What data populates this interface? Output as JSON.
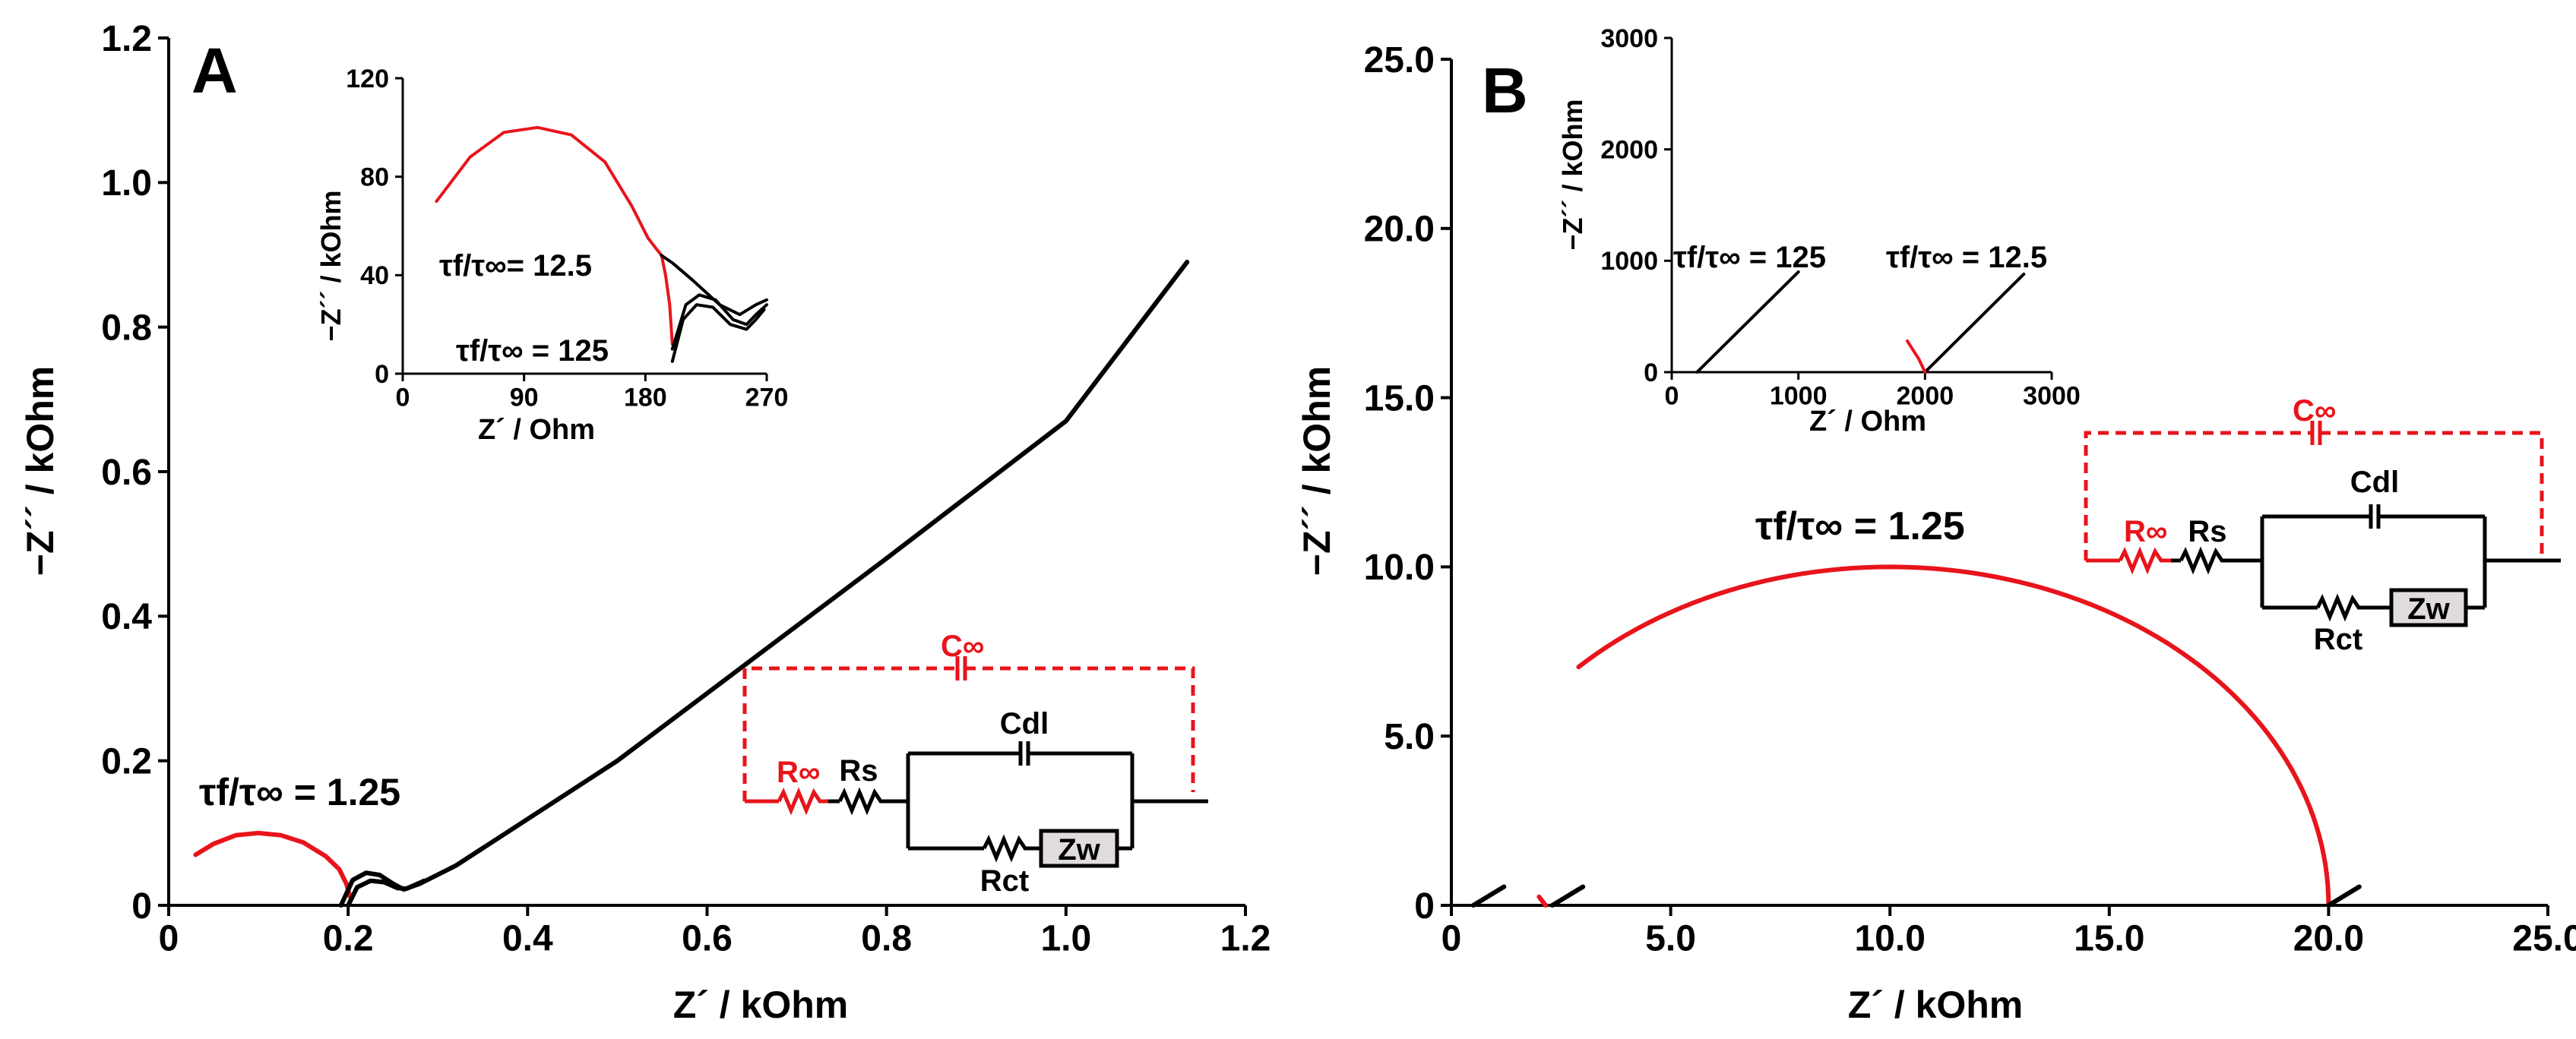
{
  "figure": {
    "colors": {
      "black": "#000000",
      "red": "#e8141b",
      "zw_fill": "#e0dcdc"
    }
  },
  "chart_data": [
    {
      "panel": "A",
      "type": "line",
      "xlabel": "Z´ / kOhm",
      "ylabel": "−Z´´ / kOhm",
      "xlim": [
        0,
        1.2
      ],
      "ylim": [
        0,
        1.2
      ],
      "xticks": [
        "0",
        "0.2",
        "0.4",
        "0.6",
        "0.8",
        "1.0",
        "1.2"
      ],
      "yticks": [
        "0",
        "0.2",
        "0.4",
        "0.6",
        "0.8",
        "1.0",
        "1.2"
      ],
      "annotations": {
        "ratio": "τf/τ∞ = 1.25"
      },
      "series": [
        {
          "color": "red",
          "points": [
            [
              0.03,
              0.07
            ],
            [
              0.05,
              0.085
            ],
            [
              0.075,
              0.097
            ],
            [
              0.1,
              0.1
            ],
            [
              0.125,
              0.097
            ],
            [
              0.15,
              0.087
            ],
            [
              0.175,
              0.068
            ],
            [
              0.19,
              0.05
            ],
            [
              0.198,
              0.03
            ],
            [
              0.202,
              0.012
            ]
          ]
        },
        {
          "color": "black",
          "points": [
            [
              0.192,
              0.0
            ],
            [
              0.205,
              0.035
            ],
            [
              0.22,
              0.045
            ],
            [
              0.235,
              0.042
            ],
            [
              0.25,
              0.03
            ],
            [
              0.262,
              0.022
            ],
            [
              0.28,
              0.03
            ],
            [
              0.32,
              0.055
            ],
            [
              0.5,
              0.2
            ],
            [
              0.8,
              0.48
            ],
            [
              1.0,
              0.67
            ],
            [
              1.135,
              0.89
            ]
          ]
        },
        {
          "color": "black",
          "points": [
            [
              0.2,
              0.0
            ],
            [
              0.21,
              0.025
            ],
            [
              0.225,
              0.034
            ],
            [
              0.24,
              0.032
            ],
            [
              0.255,
              0.024
            ],
            [
              0.265,
              0.023
            ],
            [
              0.285,
              0.034
            ]
          ]
        }
      ],
      "inset": {
        "xlabel": "Z´ / Ohm",
        "ylabel": "−Z´´ / kOhm",
        "xlim": [
          0,
          270
        ],
        "ylim": [
          0,
          120
        ],
        "xticks": [
          "0",
          "90",
          "180",
          "270"
        ],
        "yticks": [
          "0",
          "40",
          "80",
          "120"
        ],
        "labels": {
          "upper": "τf/τ∞= 12.5",
          "lower": "τf/τ∞ = 125"
        },
        "series": [
          {
            "color": "red",
            "points": [
              [
                25,
                70
              ],
              [
                50,
                88
              ],
              [
                75,
                98
              ],
              [
                100,
                100
              ],
              [
                125,
                97
              ],
              [
                150,
                86
              ],
              [
                170,
                68
              ],
              [
                182,
                55
              ],
              [
                192,
                48
              ]
            ]
          },
          {
            "color": "red",
            "points": [
              [
                192,
                48
              ],
              [
                195,
                40
              ],
              [
                198,
                28
              ],
              [
                200,
                12
              ]
            ]
          },
          {
            "color": "black",
            "points": [
              [
                192,
                48
              ],
              [
                200,
                45
              ],
              [
                215,
                38
              ],
              [
                235,
                28
              ],
              [
                250,
                24
              ],
              [
                262,
                28
              ],
              [
                270,
                30
              ]
            ]
          },
          {
            "color": "black",
            "points": [
              [
                200,
                10
              ],
              [
                210,
                28
              ],
              [
                220,
                32
              ],
              [
                232,
                30
              ],
              [
                245,
                22
              ],
              [
                255,
                20
              ],
              [
                262,
                24
              ],
              [
                270,
                28
              ]
            ]
          },
          {
            "color": "black",
            "points": [
              [
                200,
                5
              ],
              [
                208,
                22
              ],
              [
                218,
                28
              ],
              [
                230,
                27
              ],
              [
                243,
                20
              ],
              [
                255,
                18
              ],
              [
                262,
                22
              ],
              [
                268,
                26
              ]
            ]
          }
        ]
      },
      "circuit": {
        "r_inf": "R∞",
        "c_inf": "C∞",
        "rs": "Rs",
        "cdl": "Cdl",
        "rct": "Rct",
        "zw": "Zw"
      }
    },
    {
      "panel": "B",
      "type": "line",
      "xlabel": "Z´ / kOhm",
      "ylabel": "−Z´´ / kOhm",
      "xlim": [
        0,
        25
      ],
      "ylim": [
        0,
        25
      ],
      "xticks": [
        "0",
        "5.0",
        "10.0",
        "15.0",
        "20.0",
        "25.0"
      ],
      "yticks": [
        "0",
        "5.0",
        "10.0",
        "15.0",
        "20.0",
        "25.0"
      ],
      "annotations": {
        "ratio": "τf/τ∞ = 1.25"
      },
      "series": [
        {
          "color": "red",
          "arc": {
            "center": 10.0,
            "radius": 10.0,
            "from_x": 2.9,
            "to_x": 20.0
          }
        },
        {
          "color": "red",
          "points": [
            [
              2.0,
              0.25
            ],
            [
              2.15,
              0.0
            ]
          ]
        },
        {
          "color": "black",
          "points": [
            [
              0.5,
              0.0
            ],
            [
              1.2,
              0.55
            ]
          ]
        },
        {
          "color": "black",
          "points": [
            [
              2.3,
              0.0
            ],
            [
              3.0,
              0.55
            ]
          ]
        },
        {
          "color": "black",
          "points": [
            [
              20.0,
              0.0
            ],
            [
              20.7,
              0.55
            ]
          ]
        }
      ],
      "inset": {
        "xlabel": "Z´ / Ohm",
        "ylabel": "−Z´´ / kOhm",
        "xlim": [
          0,
          3000
        ],
        "ylim": [
          0,
          3000
        ],
        "xticks": [
          "0",
          "1000",
          "2000",
          "3000"
        ],
        "yticks": [
          "0",
          "1000",
          "2000",
          "3000"
        ],
        "labels": {
          "left": "τf/τ∞ = 125",
          "right": "τf/τ∞ = 12.5"
        },
        "series": [
          {
            "color": "black",
            "points": [
              [
                200,
                0
              ],
              [
                1000,
                900
              ]
            ]
          },
          {
            "color": "black",
            "points": [
              [
                2000,
                0
              ],
              [
                2780,
                880
              ]
            ]
          },
          {
            "color": "red",
            "points": [
              [
                1860,
                280
              ],
              [
                1950,
                120
              ],
              [
                2000,
                0
              ]
            ]
          }
        ]
      },
      "circuit": {
        "r_inf": "R∞",
        "c_inf": "C∞",
        "rs": "Rs",
        "cdl": "Cdl",
        "rct": "Rct",
        "zw": "Zw"
      }
    }
  ]
}
